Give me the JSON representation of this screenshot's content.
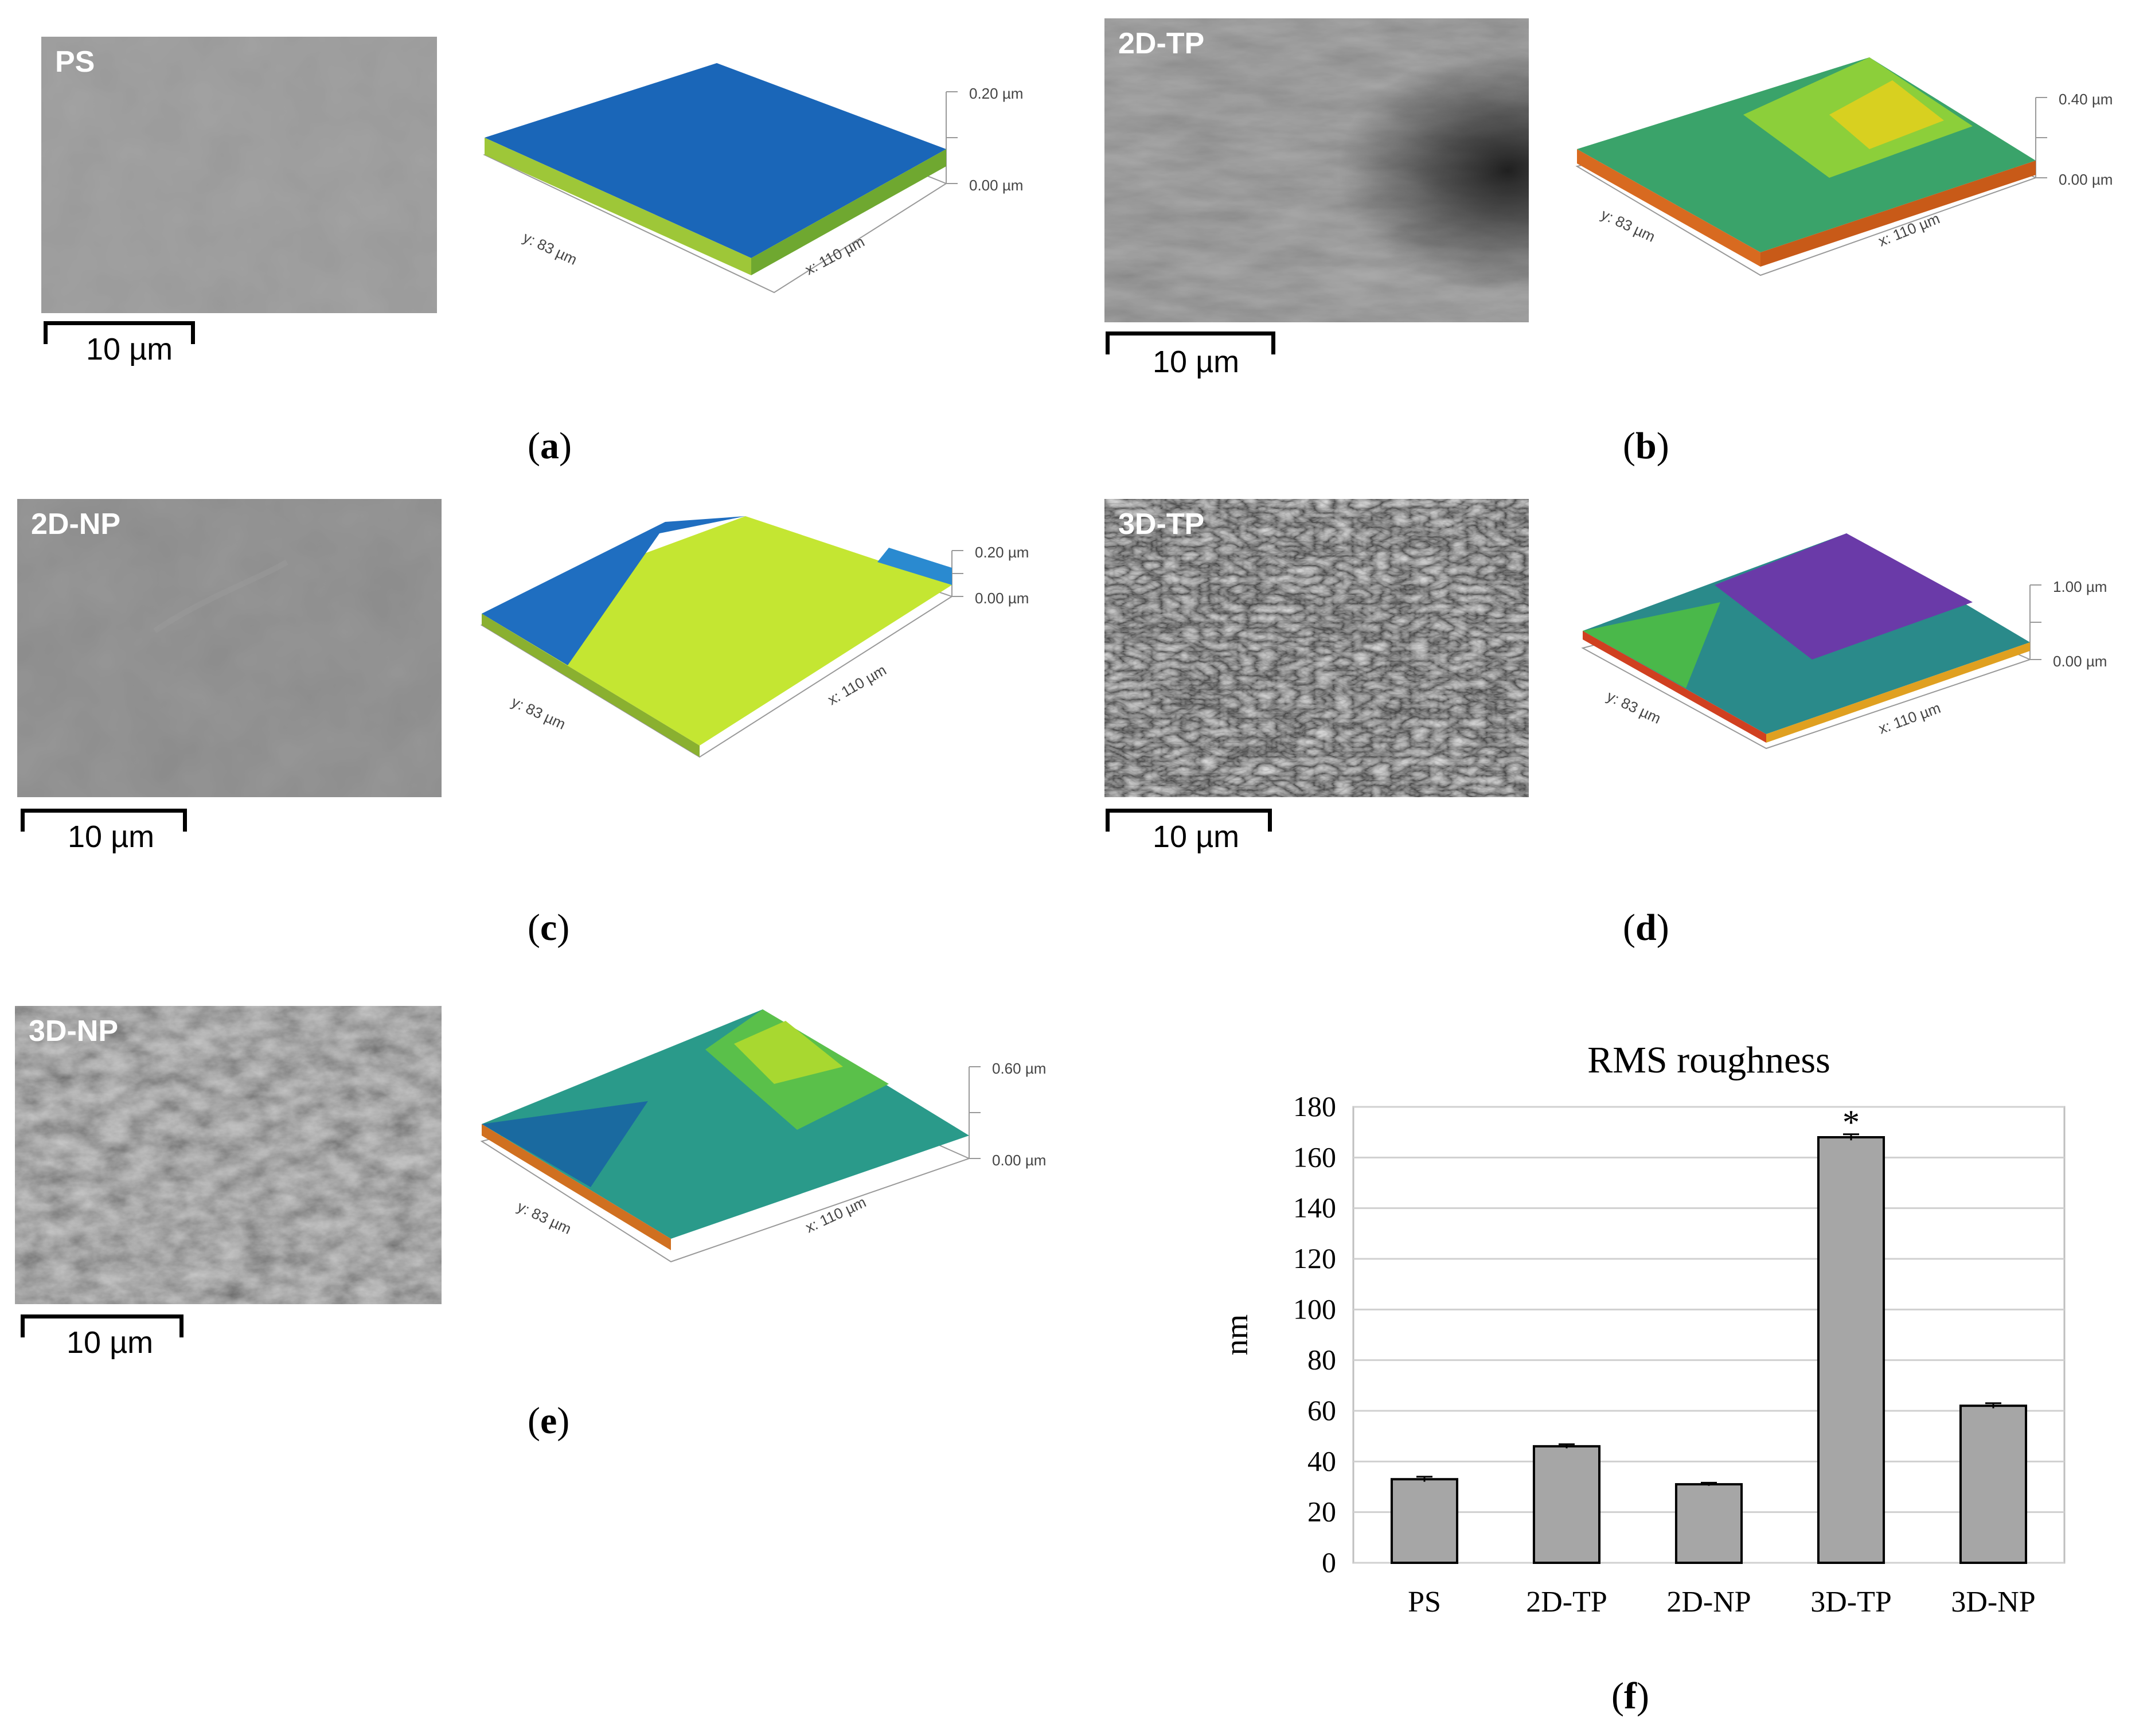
{
  "panels": [
    {
      "id": "a",
      "sem_label": "PS",
      "scale": "10 µm",
      "z_top": "0.20 µm",
      "z_bottom": "0.00 µm",
      "y_axis": "y: 83 µm",
      "x_axis": "x: 110 µm",
      "caption": "a",
      "palette": [
        "#1a66b8",
        "#2a8bd6",
        "#6fb0d9",
        "#9ec738"
      ]
    },
    {
      "id": "b",
      "sem_label": "2D-TP",
      "scale": "10 µm",
      "z_top": "0.40 µm",
      "z_bottom": "0.00 µm",
      "y_axis": "y: 83 µm",
      "x_axis": "x: 110 µm",
      "caption": "b",
      "palette": [
        "#1a7a8a",
        "#3aa36a",
        "#8ccf3a",
        "#d8d020",
        "#d86a20"
      ]
    },
    {
      "id": "c",
      "sem_label": "2D-NP",
      "scale": "10 µm",
      "z_top": "0.20 µm",
      "z_bottom": "0.00 µm",
      "y_axis": "y: 83 µm",
      "x_axis": "x: 110 µm",
      "caption": "c",
      "palette": [
        "#1f6ec0",
        "#3a9ad8",
        "#b9e032",
        "#d7f030"
      ]
    },
    {
      "id": "d",
      "sem_label": "3D-TP",
      "scale": "10 µm",
      "z_top": "1.00 µm",
      "z_bottom": "0.00 µm",
      "y_axis": "y: 83 µm",
      "x_axis": "x: 110 µm",
      "caption": "d",
      "palette": [
        "#3a2a8a",
        "#6a3aa8",
        "#2a8a8a",
        "#4ab84a",
        "#e0a020",
        "#d04020"
      ]
    },
    {
      "id": "e",
      "sem_label": "3D-NP",
      "scale": "10 µm",
      "z_top": "0.60 µm",
      "z_bottom": "0.00 µm",
      "y_axis": "y: 83 µm",
      "x_axis": "x: 110 µm",
      "caption": "e",
      "palette": [
        "#1a6aa0",
        "#2a9a8a",
        "#5ac04a",
        "#a8d830",
        "#d07020"
      ]
    }
  ],
  "caption_f": "f",
  "chart_data": {
    "type": "bar",
    "title": "RMS roughness",
    "ylabel": "nm",
    "xlabel": "",
    "categories": [
      "PS",
      "2D-TP",
      "2D-NP",
      "3D-TP",
      "3D-NP"
    ],
    "values": [
      33,
      46,
      31,
      168,
      62
    ],
    "errors": [
      1,
      0.8,
      0.6,
      1.2,
      1
    ],
    "annotations": [
      {
        "category": "3D-TP",
        "text": "*"
      }
    ],
    "ylim": [
      0,
      180
    ],
    "yticks": [
      0,
      20,
      40,
      60,
      80,
      100,
      120,
      140,
      160,
      180
    ],
    "grid": true,
    "bar_color": "#a6a6a6"
  }
}
